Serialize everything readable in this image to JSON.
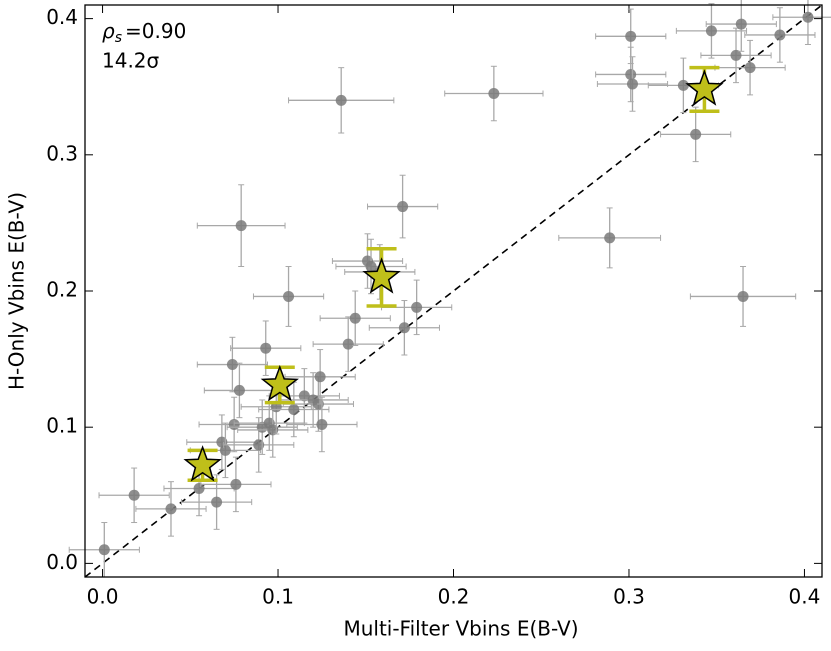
{
  "chart_data": {
    "type": "scatter",
    "x_label": "Multi-Filter Vbins E(B-V)",
    "y_label": "H-Only Vbins E(B-V)",
    "annotation": {
      "rho": "ρ",
      "rho_sub": "s",
      "rho_value": "=0.90",
      "significance": "14.2σ"
    },
    "xlim": [
      -0.01,
      0.41
    ],
    "ylim": [
      -0.01,
      0.41
    ],
    "xticks": [
      {
        "value": 0,
        "label": "0.0"
      },
      0.1,
      0.2,
      0.3,
      0.4
    ],
    "yticks": [
      {
        "value": 0,
        "label": "0.0"
      },
      0.1,
      0.2,
      0.3,
      0.4
    ],
    "identity_line": true,
    "points": {
      "color": "#7a7a7a",
      "errcolor": "#a8a8a8",
      "x": [
        0.001,
        0.018,
        0.039,
        0.055,
        0.065,
        0.076,
        0.068,
        0.07,
        0.074,
        0.078,
        0.075,
        0.079,
        0.089,
        0.091,
        0.093,
        0.095,
        0.097,
        0.099,
        0.106,
        0.109,
        0.115,
        0.12,
        0.123,
        0.124,
        0.125,
        0.136,
        0.14,
        0.144,
        0.151,
        0.158,
        0.153,
        0.171,
        0.172,
        0.179,
        0.223,
        0.289,
        0.301,
        0.301,
        0.302,
        0.331,
        0.338,
        0.347,
        0.361,
        0.364,
        0.365,
        0.369,
        0.386,
        0.402
      ],
      "y": [
        0.01,
        0.05,
        0.04,
        0.055,
        0.045,
        0.058,
        0.089,
        0.083,
        0.146,
        0.127,
        0.102,
        0.248,
        0.087,
        0.1,
        0.158,
        0.103,
        0.098,
        0.115,
        0.196,
        0.113,
        0.123,
        0.12,
        0.117,
        0.137,
        0.102,
        0.34,
        0.161,
        0.18,
        0.222,
        0.214,
        0.218,
        0.262,
        0.173,
        0.188,
        0.345,
        0.239,
        0.387,
        0.359,
        0.352,
        0.351,
        0.315,
        0.391,
        0.373,
        0.396,
        0.196,
        0.364,
        0.388,
        0.401
      ],
      "xerr": [
        0.02,
        0.02,
        0.02,
        0.02,
        0.02,
        0.02,
        0.02,
        0.02,
        0.02,
        0.02,
        0.02,
        0.025,
        0.02,
        0.02,
        0.02,
        0.02,
        0.02,
        0.02,
        0.02,
        0.02,
        0.02,
        0.02,
        0.02,
        0.02,
        0.02,
        0.03,
        0.02,
        0.02,
        0.02,
        0.02,
        0.02,
        0.02,
        0.02,
        0.02,
        0.028,
        0.029,
        0.02,
        0.02,
        0.02,
        0.02,
        0.02,
        0.02,
        0.02,
        0.02,
        0.03,
        0.02,
        0.02,
        0.02
      ],
      "yerr": [
        0.02,
        0.02,
        0.02,
        0.02,
        0.02,
        0.02,
        0.02,
        0.02,
        0.02,
        0.02,
        0.02,
        0.03,
        0.02,
        0.02,
        0.02,
        0.02,
        0.02,
        0.02,
        0.022,
        0.02,
        0.02,
        0.02,
        0.02,
        0.02,
        0.02,
        0.024,
        0.02,
        0.02,
        0.02,
        0.02,
        0.02,
        0.023,
        0.02,
        0.02,
        0.02,
        0.022,
        0.02,
        0.02,
        0.02,
        0.02,
        0.02,
        0.02,
        0.02,
        0.02,
        0.022,
        0.02,
        0.02,
        0.02
      ]
    },
    "stars": {
      "color": "#bfbf1a",
      "x": [
        0.057,
        0.101,
        0.159,
        0.343
      ],
      "y": [
        0.072,
        0.131,
        0.21,
        0.348
      ],
      "yerr": [
        0.011,
        0.013,
        0.021,
        0.016
      ]
    }
  }
}
